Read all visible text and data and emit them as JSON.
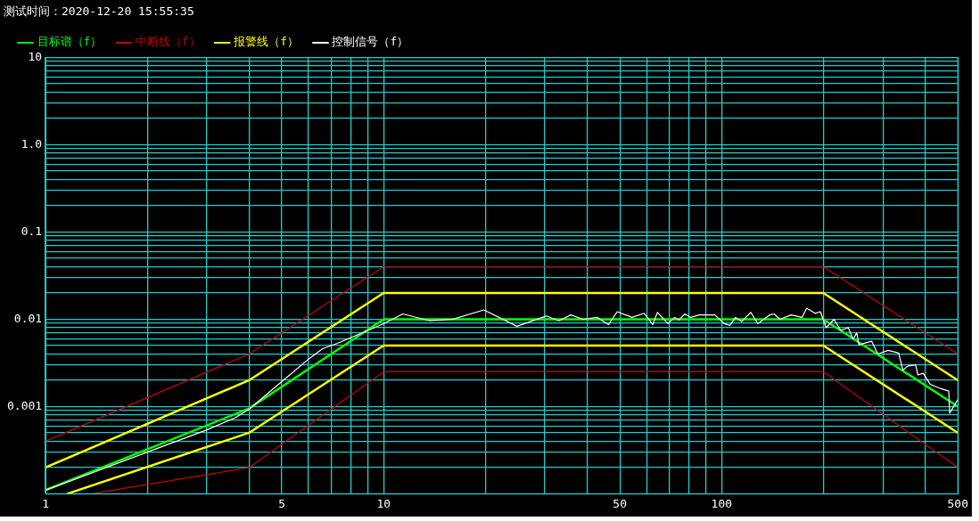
{
  "chart_data": {
    "type": "line",
    "title": "测试时间：2020-12-20 15:55:35",
    "log": "xy",
    "grid": true,
    "legend": "top left",
    "marker": "none",
    "line_style": "solid",
    "xlim": [
      1,
      500
    ],
    "xticks": [
      1,
      {
        "value": 2,
        "label": null
      },
      {
        "value": 3,
        "label": null
      },
      {
        "value": 4,
        "label": null
      },
      5,
      {
        "value": 6,
        "label": null
      },
      {
        "value": 7,
        "label": null
      },
      {
        "value": 8,
        "label": null
      },
      {
        "value": 9,
        "label": null
      },
      10,
      {
        "value": 20,
        "label": null
      },
      {
        "value": 30,
        "label": null
      },
      {
        "value": 40,
        "label": null
      },
      50,
      {
        "value": 60,
        "label": null
      },
      {
        "value": 70,
        "label": null
      },
      {
        "value": 80,
        "label": null
      },
      {
        "value": 90,
        "label": null
      },
      100,
      {
        "value": 200,
        "label": null
      },
      {
        "value": 300,
        "label": null
      },
      {
        "value": 400,
        "label": null
      },
      500
    ],
    "ylim": [
      0.0001,
      10
    ],
    "yticks": [
      {
        "value": 0.0001,
        "label": null
      },
      {
        "value": 0.0002,
        "label": null
      },
      {
        "value": 0.0003,
        "label": null
      },
      {
        "value": 0.0004,
        "label": null
      },
      {
        "value": 0.0005,
        "label": null
      },
      {
        "value": 0.0006,
        "label": null
      },
      {
        "value": 0.0007,
        "label": null
      },
      {
        "value": 0.0008,
        "label": null
      },
      {
        "value": 0.0009,
        "label": null
      },
      0.001,
      {
        "value": 0.002,
        "label": null
      },
      {
        "value": 0.003,
        "label": null
      },
      {
        "value": 0.004,
        "label": null
      },
      {
        "value": 0.005,
        "label": null
      },
      {
        "value": 0.006,
        "label": null
      },
      {
        "value": 0.007,
        "label": null
      },
      {
        "value": 0.008,
        "label": null
      },
      {
        "value": 0.009,
        "label": null
      },
      0.01,
      {
        "value": 0.02,
        "label": null
      },
      {
        "value": 0.03,
        "label": null
      },
      {
        "value": 0.04,
        "label": null
      },
      {
        "value": 0.05,
        "label": null
      },
      {
        "value": 0.06,
        "label": null
      },
      {
        "value": 0.07,
        "label": null
      },
      {
        "value": 0.08,
        "label": null
      },
      {
        "value": 0.09,
        "label": null
      },
      0.1,
      {
        "value": 0.2,
        "label": null
      },
      {
        "value": 0.3,
        "label": null
      },
      {
        "value": 0.4,
        "label": null
      },
      {
        "value": 0.5,
        "label": null
      },
      {
        "value": 0.6,
        "label": null
      },
      {
        "value": 0.7,
        "label": null
      },
      {
        "value": 0.8,
        "label": null
      },
      {
        "value": 0.9,
        "label": null
      },
      {
        "value": 1,
        "label": "1.0"
      },
      {
        "value": 2,
        "label": null
      },
      {
        "value": 3,
        "label": null
      },
      {
        "value": 4,
        "label": null
      },
      {
        "value": 5,
        "label": null
      },
      {
        "value": 6,
        "label": null
      },
      {
        "value": 7,
        "label": null
      },
      {
        "value": 8,
        "label": null
      },
      {
        "value": 9,
        "label": null
      },
      10
    ],
    "series": [
      {
        "name": "目标谱（f）",
        "color": "#00ff00",
        "x": [
          1,
          4,
          10,
          200,
          500
        ],
        "values": [
          0.00011,
          0.00095,
          0.01,
          0.01,
          0.001
        ]
      },
      {
        "name": "中断线（f）",
        "color": "#cc0000",
        "x": [
          1,
          4,
          10,
          200,
          500
        ],
        "values": [
          0.0004,
          0.004,
          0.04,
          0.04,
          0.004
        ]
      },
      {
        "color": "#cc0000",
        "x": [
          1.37,
          4,
          10,
          200,
          500
        ],
        "values": [
          0.0001,
          0.0002,
          0.0025,
          0.0025,
          0.0002
        ]
      },
      {
        "name": "报警线（f）",
        "color": "#ffff00",
        "x": [
          1,
          4,
          10,
          200,
          500
        ],
        "values": [
          0.0002,
          0.002,
          0.02,
          0.02,
          0.002
        ]
      },
      {
        "color": "#ffff00",
        "x": [
          1.16,
          4,
          10,
          200,
          500
        ],
        "values": [
          0.0001,
          0.0005,
          0.005,
          0.005,
          0.0005
        ]
      },
      {
        "name": "控制信号（f）",
        "color": "#ffffff",
        "x": [
          1,
          2,
          3,
          3.63,
          4,
          5.05,
          6,
          6.6,
          7.3,
          10,
          11.4,
          13.7,
          16,
          19.8,
          24.8,
          30.3,
          33,
          35.8,
          38.9,
          42.9,
          46.3,
          49.1,
          54.3,
          59,
          62.6,
          64.6,
          69.4,
          72.6,
          74.7,
          77.9,
          81,
          86,
          95.5,
          101.9,
          105.8,
          110,
          114.6,
          122,
          128,
          138.6,
          143,
          148.8,
          160.5,
          173,
          178.5,
          189,
          196,
          204,
          215,
          225,
          237,
          245,
          251,
          255,
          278,
          290,
          311,
          334,
          344,
          355,
          375,
          381,
          395,
          414,
          446,
          470,
          473,
          500
        ],
        "values": [
          0.00011,
          0.0003,
          0.00054,
          0.00074,
          0.00093,
          0.002,
          0.0035,
          0.0046,
          0.0053,
          0.0089,
          0.0115,
          0.0096,
          0.01,
          0.0128,
          0.0083,
          0.0109,
          0.0096,
          0.0112,
          0.01,
          0.0105,
          0.0087,
          0.0122,
          0.0105,
          0.0117,
          0.0087,
          0.012,
          0.0089,
          0.0105,
          0.0098,
          0.0115,
          0.0105,
          0.0112,
          0.0112,
          0.0089,
          0.0085,
          0.0105,
          0.0094,
          0.012,
          0.0089,
          0.0112,
          0.0115,
          0.01,
          0.0112,
          0.0105,
          0.0134,
          0.0117,
          0.0122,
          0.008,
          0.01,
          0.0075,
          0.008,
          0.0059,
          0.007,
          0.0051,
          0.0056,
          0.004,
          0.0044,
          0.0041,
          0.0026,
          0.0029,
          0.003,
          0.0023,
          0.0024,
          0.0018,
          0.0016,
          0.0015,
          0.00084,
          0.0012
        ]
      }
    ]
  }
}
